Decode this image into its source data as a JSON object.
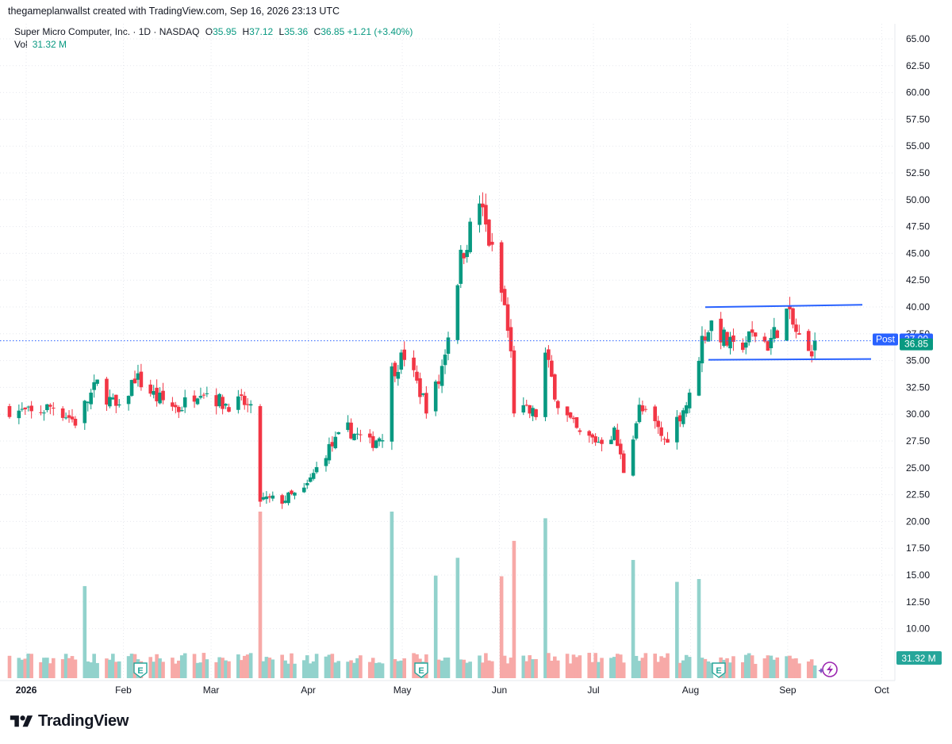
{
  "header": {
    "attribution": "thegameplanwallst created with TradingView.com, Sep 16, 2026 23:13 UTC"
  },
  "legend": {
    "symbol": "Super Micro Computer, Inc. · 1D · NASDAQ",
    "o_label": "O",
    "o_value": "35.95",
    "h_label": "H",
    "h_value": "37.12",
    "l_label": "L",
    "l_value": "35.36",
    "c_label": "C",
    "c_value": "36.85",
    "change": "+1.21 (+3.40%)",
    "vol_label": "Vol",
    "vol_value": "31.32 M"
  },
  "footer": {
    "brand": "TradingView"
  },
  "colors": {
    "up": "#089981",
    "down": "#f23645",
    "up_vol": "#92d2cc",
    "down_vol": "#f7a9a7",
    "channel": "#2962ff",
    "price_line": "#2962ff"
  },
  "chart_data": {
    "type": "candlestick",
    "y_ticks": [
      "65.00",
      "62.50",
      "60.00",
      "57.50",
      "55.00",
      "52.50",
      "50.00",
      "47.50",
      "45.00",
      "42.50",
      "40.00",
      "37.50",
      "35.00",
      "32.50",
      "30.00",
      "27.50",
      "25.00",
      "22.50",
      "20.00",
      "17.50",
      "15.00",
      "12.50",
      "10.00"
    ],
    "x_ticks": [
      "2026",
      "Feb",
      "Mar",
      "Apr",
      "May",
      "Jun",
      "Jul",
      "Aug",
      "Sep",
      "Oct"
    ],
    "ylim": [
      7.5,
      66
    ],
    "post_label": "Post",
    "post_price": "37.00",
    "last_price": "36.85",
    "last_volume": "31.32 M",
    "earnings_marker": "E",
    "earnings_months": [
      "Feb",
      "May",
      "Aug"
    ],
    "channel_upper": 40.2,
    "channel_lower": 35.0,
    "anchors": [
      [
        "2026-01-02",
        30.5
      ],
      [
        "2026-01-09",
        30.0
      ],
      [
        "2026-01-16",
        30.8
      ],
      [
        "2026-01-23",
        29.3
      ],
      [
        "2026-01-30",
        32.8
      ],
      [
        "2026-02-06",
        30.2
      ],
      [
        "2026-02-11",
        33.5
      ],
      [
        "2026-02-18",
        31.5
      ],
      [
        "2026-02-25",
        30.5
      ],
      [
        "2026-03-04",
        32.5
      ],
      [
        "2026-03-11",
        31.0
      ],
      [
        "2026-03-18",
        31.0
      ],
      [
        "2026-03-20",
        30.2
      ],
      [
        "2026-03-23",
        22.0
      ],
      [
        "2026-03-30",
        22.0
      ],
      [
        "2026-04-06",
        22.8
      ],
      [
        "2026-04-13",
        26.5
      ],
      [
        "2026-04-20",
        28.6
      ],
      [
        "2026-04-27",
        27.2
      ],
      [
        "2026-05-01",
        28.2
      ],
      [
        "2026-05-04",
        34.0
      ],
      [
        "2026-05-08",
        35.5
      ],
      [
        "2026-05-15",
        30.8
      ],
      [
        "2026-05-19",
        33.0
      ],
      [
        "2026-05-22",
        37.5
      ],
      [
        "2026-05-26",
        44.5
      ],
      [
        "2026-06-01",
        49.8
      ],
      [
        "2026-06-05",
        45.0
      ],
      [
        "2026-06-09",
        40.0
      ],
      [
        "2026-06-11",
        35.5
      ],
      [
        "2026-06-12",
        30.5
      ],
      [
        "2026-06-19",
        30.0
      ],
      [
        "2026-06-22",
        35.5
      ],
      [
        "2026-06-26",
        31.0
      ],
      [
        "2026-07-03",
        28.0
      ],
      [
        "2026-07-09",
        27.5
      ],
      [
        "2026-07-14",
        28.3
      ],
      [
        "2026-07-17",
        24.8
      ],
      [
        "2026-07-22",
        30.5
      ],
      [
        "2026-07-27",
        29.0
      ],
      [
        "2026-07-30",
        27.5
      ],
      [
        "2026-08-05",
        30.5
      ],
      [
        "2026-08-07",
        31.5
      ],
      [
        "2026-08-11",
        37.0
      ],
      [
        "2026-08-14",
        38.5
      ],
      [
        "2026-08-21",
        36.0
      ],
      [
        "2026-08-28",
        37.5
      ],
      [
        "2026-09-01",
        36.5
      ],
      [
        "2026-09-07",
        39.5
      ],
      [
        "2026-09-11",
        37.0
      ],
      [
        "2026-09-14",
        35.6
      ],
      [
        "2026-09-16",
        36.85
      ]
    ]
  }
}
